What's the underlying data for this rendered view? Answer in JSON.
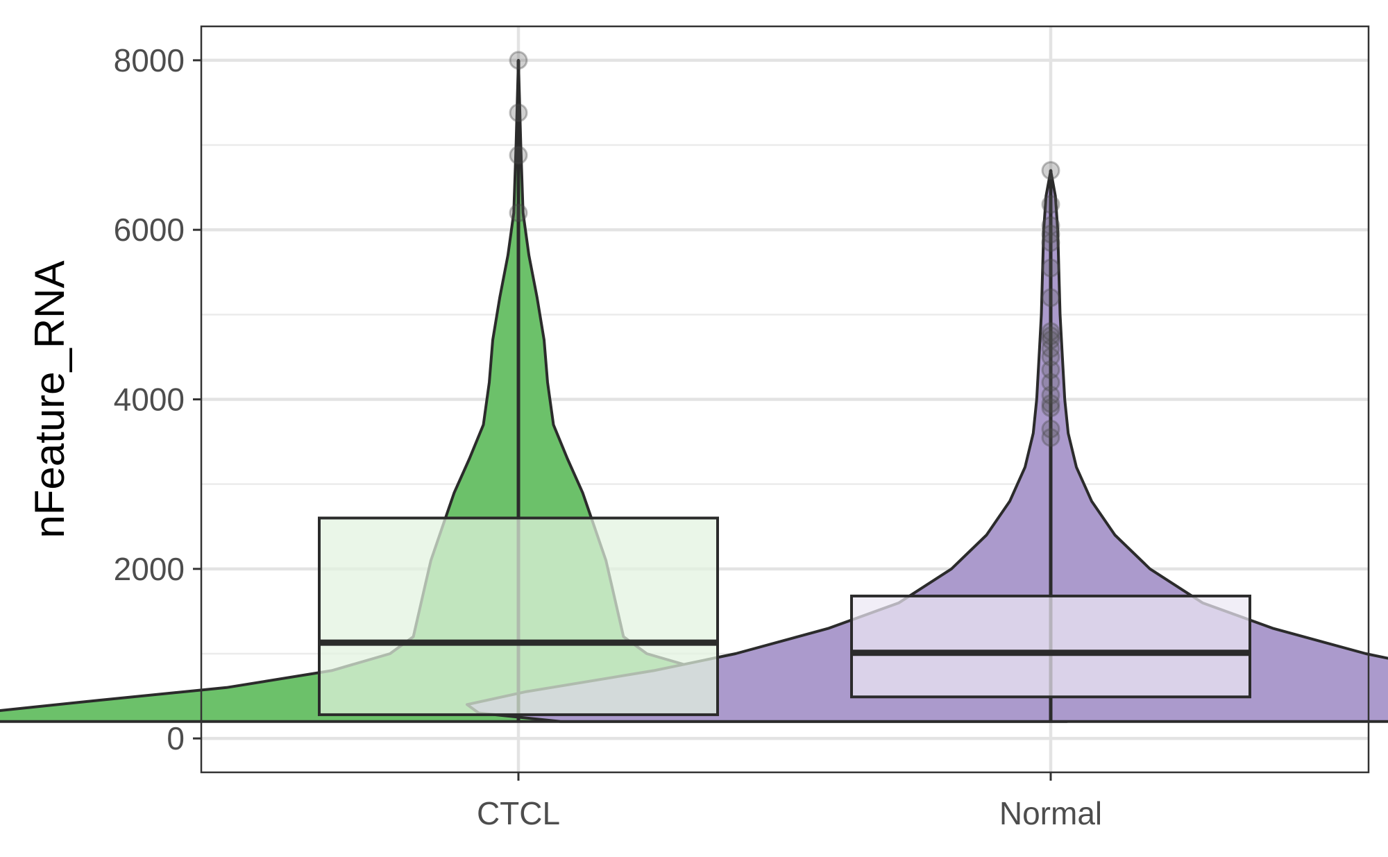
{
  "chart_data": {
    "type": "violin",
    "title": "",
    "xlabel": "",
    "ylabel": "nFeature_RNA",
    "ylim": [
      -400,
      8400
    ],
    "yticks": [
      0,
      2000,
      4000,
      6000,
      8000
    ],
    "y_tick_labels": [
      "0",
      "2000",
      "4000",
      "6000",
      "8000"
    ],
    "grid": true,
    "legend": "none",
    "categories": [
      "CTCL",
      "Normal"
    ],
    "groups": [
      {
        "name": "CTCL",
        "violin_color": "#6cc16a",
        "box_color": "#e2f2df",
        "box": {
          "min": 200,
          "q1": 280,
          "median": 1130,
          "q3": 2600,
          "max": 8000
        },
        "outliers": [
          6200,
          6880,
          7380,
          8000
        ],
        "density": [
          [
            200,
            0.47
          ],
          [
            250,
            0.49
          ],
          [
            320,
            0.45
          ],
          [
            450,
            0.36
          ],
          [
            600,
            0.25
          ],
          [
            800,
            0.16
          ],
          [
            1000,
            0.11
          ],
          [
            1200,
            0.09
          ],
          [
            1500,
            0.085
          ],
          [
            1800,
            0.08
          ],
          [
            2100,
            0.075
          ],
          [
            2500,
            0.065
          ],
          [
            2900,
            0.055
          ],
          [
            3300,
            0.042
          ],
          [
            3700,
            0.03
          ],
          [
            4200,
            0.025
          ],
          [
            4700,
            0.022
          ],
          [
            5200,
            0.016
          ],
          [
            5700,
            0.009
          ],
          [
            6200,
            0.004
          ],
          [
            7000,
            0.002
          ],
          [
            8000,
            0.0
          ]
        ]
      },
      {
        "name": "Normal",
        "violin_color": "#ab9acc",
        "box_color": "#ece8f4",
        "box": {
          "min": 200,
          "q1": 490,
          "median": 1010,
          "q3": 1680,
          "max": 6700
        },
        "outliers": [
          3550,
          3650,
          3900,
          3950,
          4050,
          4200,
          4350,
          4500,
          4600,
          4700,
          4750,
          4800,
          5200,
          5550,
          5850,
          5950,
          6050,
          6300,
          6700
        ],
        "density": [
          [
            200,
            0.42
          ],
          [
            300,
            0.49
          ],
          [
            400,
            0.5
          ],
          [
            550,
            0.45
          ],
          [
            800,
            0.34
          ],
          [
            1000,
            0.27
          ],
          [
            1300,
            0.19
          ],
          [
            1600,
            0.13
          ],
          [
            2000,
            0.085
          ],
          [
            2400,
            0.055
          ],
          [
            2800,
            0.035
          ],
          [
            3200,
            0.022
          ],
          [
            3600,
            0.015
          ],
          [
            4000,
            0.012
          ],
          [
            4500,
            0.01
          ],
          [
            5000,
            0.008
          ],
          [
            5500,
            0.007
          ],
          [
            6000,
            0.006
          ],
          [
            6400,
            0.004
          ],
          [
            6700,
            0.0
          ]
        ]
      }
    ]
  }
}
